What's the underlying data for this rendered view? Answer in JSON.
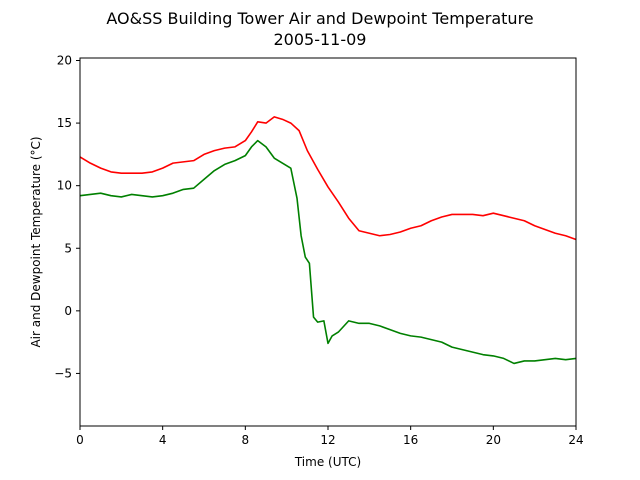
{
  "chart_data": {
    "type": "line",
    "title": "AO&SS Building Tower Air and Dewpoint Temperature",
    "subtitle": "2005-11-09",
    "xlabel": "Time (UTC)",
    "ylabel": "Air and Dewpoint Temperature (°C)",
    "xlim": [
      0,
      24
    ],
    "ylim": [
      -9.2,
      20.2
    ],
    "xticks": [
      "0",
      "4",
      "8",
      "12",
      "16",
      "20",
      "24"
    ],
    "yticks": [
      "−5",
      "0",
      "5",
      "10",
      "15",
      "20"
    ],
    "grid": false,
    "legend": "none",
    "series": [
      {
        "color": "#ff0000",
        "x": [
          0,
          0.5,
          1,
          1.5,
          2,
          2.5,
          3,
          3.5,
          4,
          4.5,
          5,
          5.5,
          6,
          6.5,
          7,
          7.5,
          8,
          8.3,
          8.6,
          9,
          9.4,
          9.8,
          10.2,
          10.6,
          11,
          11.5,
          12,
          12.5,
          13,
          13.5,
          14,
          14.5,
          15,
          15.5,
          16,
          16.5,
          17,
          17.5,
          18,
          18.5,
          19,
          19.5,
          20,
          20.5,
          21,
          21.5,
          22,
          22.5,
          23,
          23.5,
          24
        ],
        "y": [
          12.3,
          11.8,
          11.4,
          11.1,
          11.0,
          11.0,
          11.0,
          11.1,
          11.4,
          11.8,
          11.9,
          12.0,
          12.5,
          12.8,
          13.0,
          13.1,
          13.6,
          14.3,
          15.1,
          15.0,
          15.5,
          15.3,
          15.0,
          14.4,
          12.8,
          11.3,
          9.9,
          8.7,
          7.4,
          6.4,
          6.2,
          6.0,
          6.1,
          6.3,
          6.6,
          6.8,
          7.2,
          7.5,
          7.7,
          7.7,
          7.7,
          7.6,
          7.8,
          7.6,
          7.4,
          7.2,
          6.8,
          6.5,
          6.2,
          6.0,
          5.7
        ]
      },
      {
        "color": "#008000",
        "x": [
          0,
          0.5,
          1,
          1.5,
          2,
          2.5,
          3,
          3.5,
          4,
          4.5,
          5,
          5.5,
          6,
          6.5,
          7,
          7.5,
          8,
          8.3,
          8.6,
          9,
          9.4,
          9.8,
          10.2,
          10.5,
          10.7,
          10.9,
          11.1,
          11.3,
          11.5,
          11.8,
          12.0,
          12.2,
          12.5,
          13.0,
          13.5,
          14,
          14.5,
          15,
          15.5,
          16,
          16.5,
          17,
          17.5,
          18,
          18.5,
          19,
          19.5,
          20,
          20.5,
          21,
          21.5,
          22,
          22.5,
          23,
          23.5,
          24
        ],
        "y": [
          9.2,
          9.3,
          9.4,
          9.2,
          9.1,
          9.3,
          9.2,
          9.1,
          9.2,
          9.4,
          9.7,
          9.8,
          10.5,
          11.2,
          11.7,
          12.0,
          12.4,
          13.1,
          13.6,
          13.1,
          12.2,
          11.8,
          11.4,
          9.0,
          6.0,
          4.3,
          3.8,
          -0.5,
          -0.9,
          -0.8,
          -2.6,
          -2.0,
          -1.7,
          -0.8,
          -1.0,
          -1.0,
          -1.2,
          -1.5,
          -1.8,
          -2.0,
          -2.1,
          -2.3,
          -2.5,
          -2.9,
          -3.1,
          -3.3,
          -3.5,
          -3.6,
          -3.8,
          -4.2,
          -4.0,
          -4.0,
          -3.9,
          -3.8,
          -3.9,
          -3.8
        ]
      }
    ]
  }
}
